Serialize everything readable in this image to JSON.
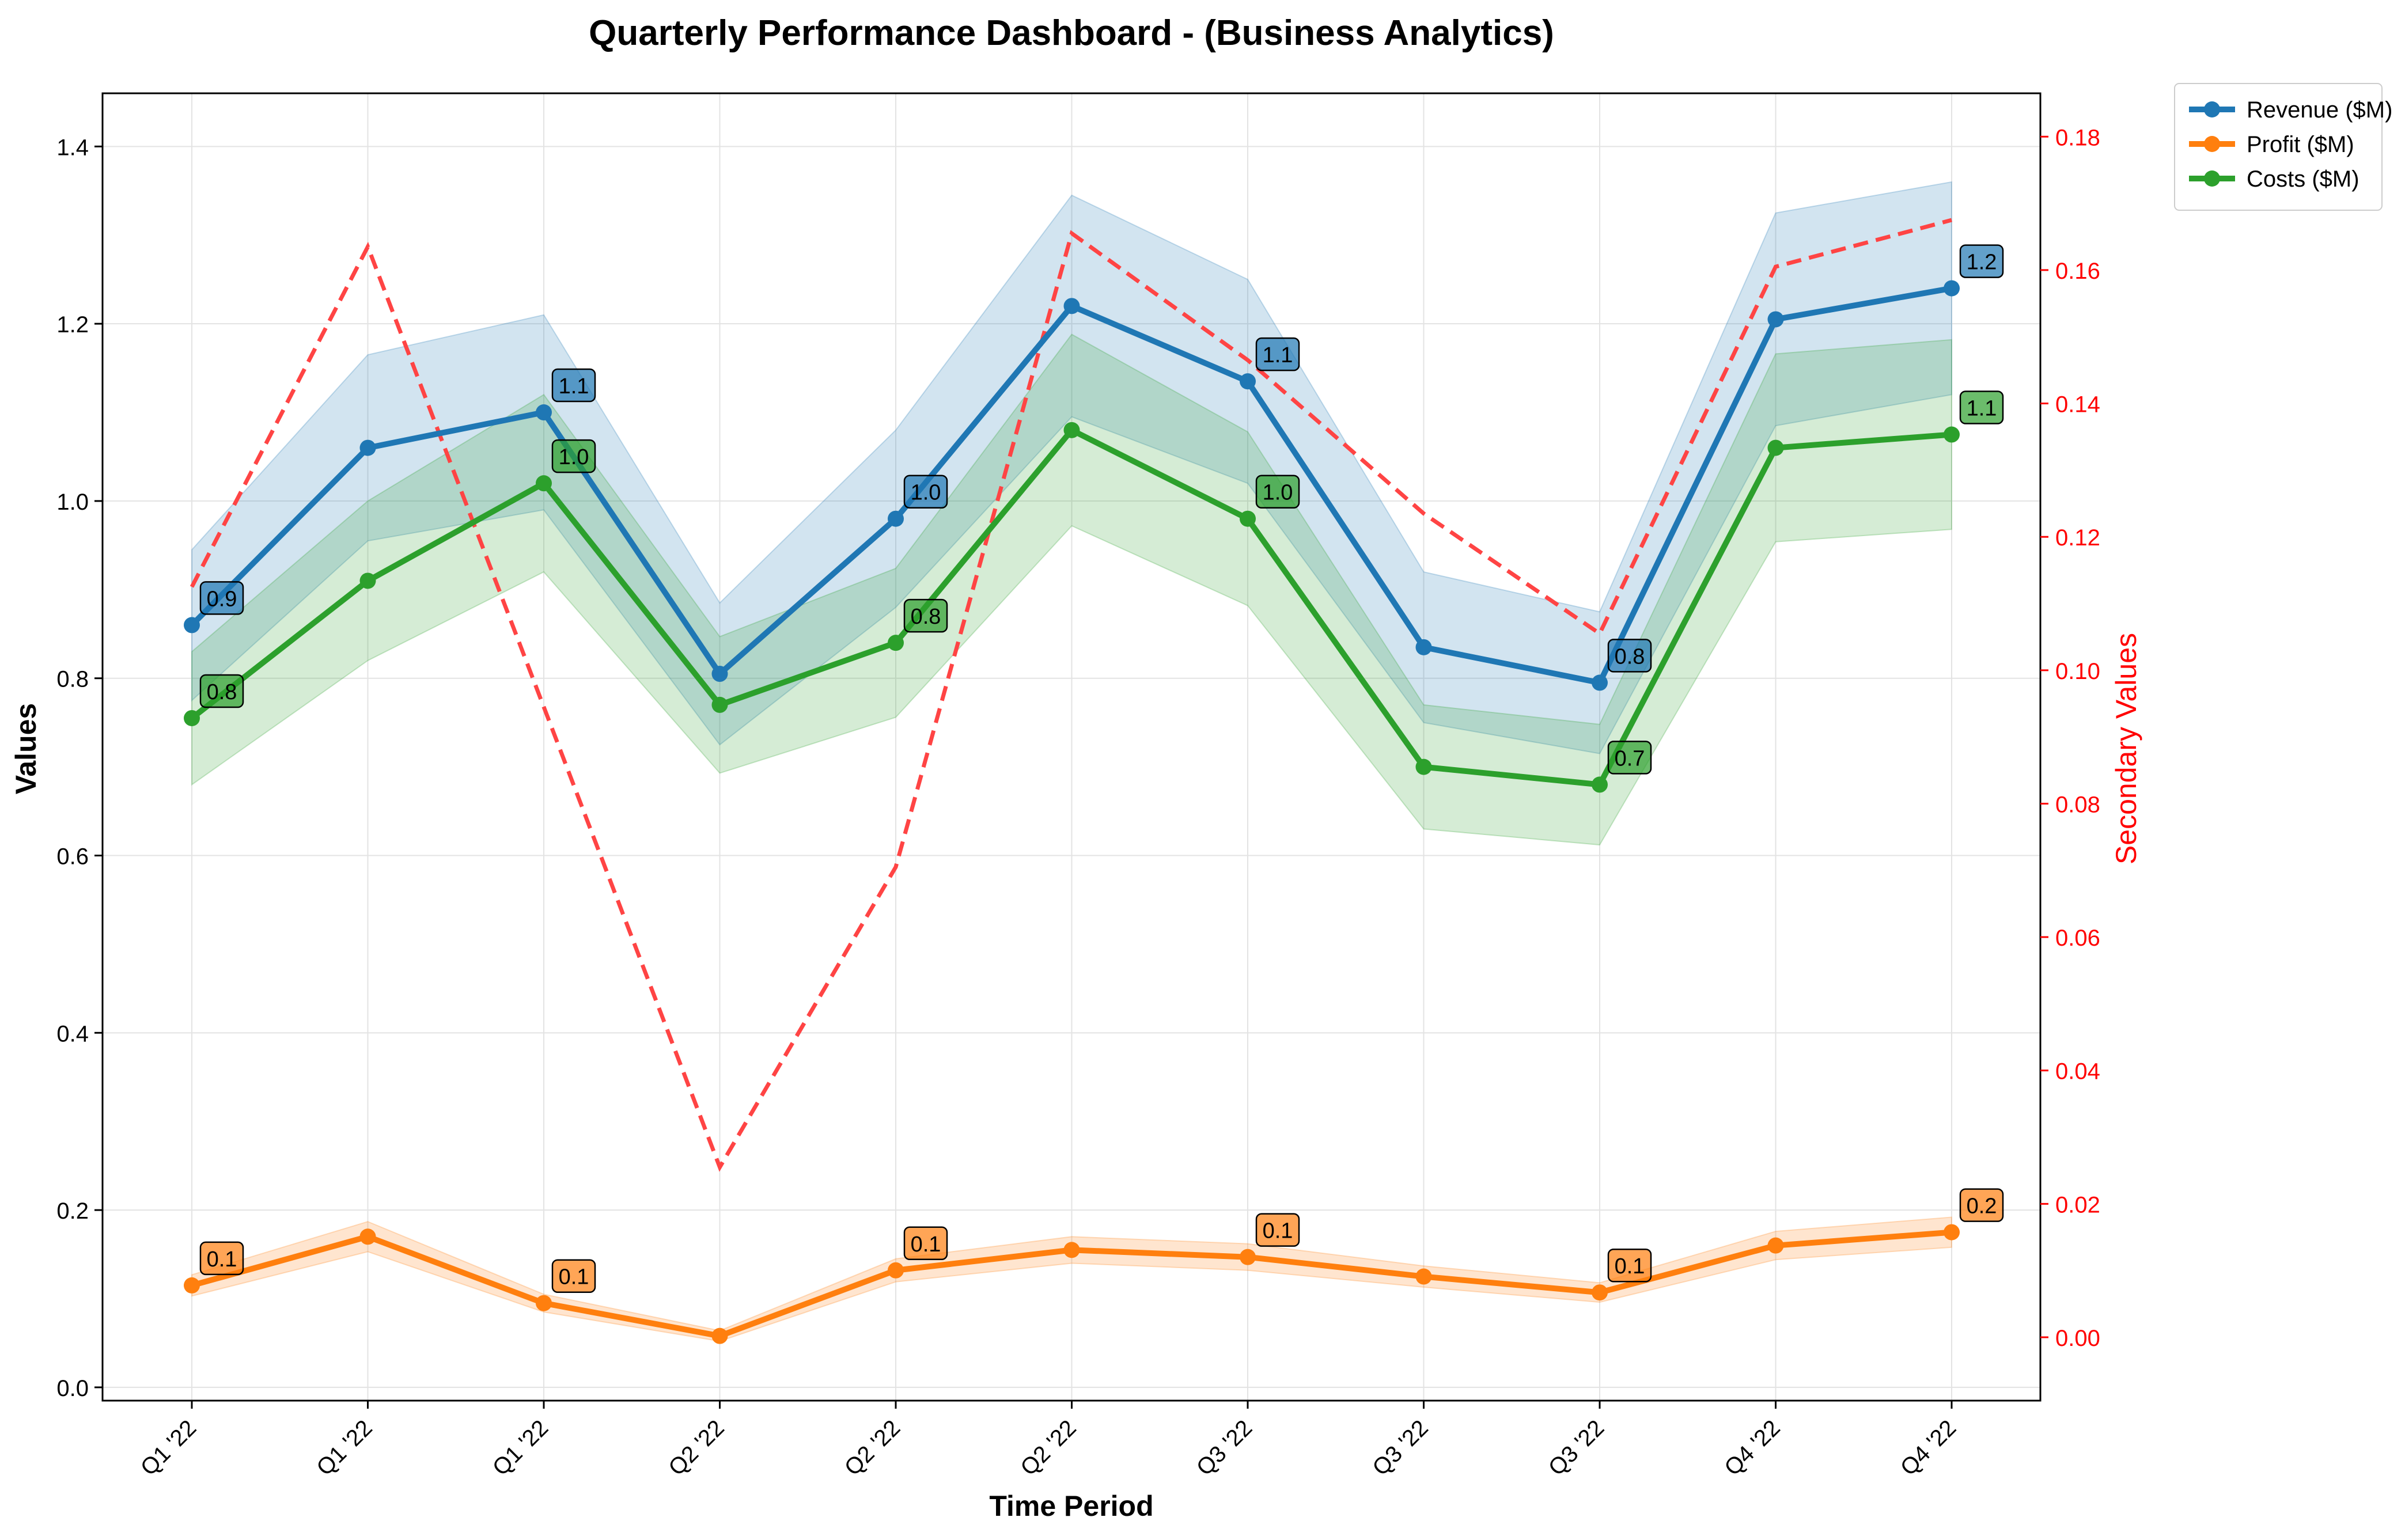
{
  "chart_data": {
    "type": "line",
    "title": "Quarterly Performance Dashboard - (Business Analytics)",
    "xlabel": "Time Period",
    "ylabel": "Values",
    "y2label": "Secondary Values",
    "categories": [
      "Q1 '22",
      "Q1 '22",
      "Q1 '22",
      "Q2 '22",
      "Q2 '22",
      "Q2 '22",
      "Q3 '22",
      "Q3 '22",
      "Q3 '22",
      "Q4 '22",
      "Q4 '22"
    ],
    "ylim": [
      -0.015,
      1.46
    ],
    "y2lim": [
      -0.0095,
      0.1865
    ],
    "yticks": [
      0.0,
      0.2,
      0.4,
      0.6,
      0.8,
      1.0,
      1.2,
      1.4
    ],
    "ytick_labels": [
      "0.0",
      "0.2",
      "0.4",
      "0.6",
      "0.8",
      "1.0",
      "1.2",
      "1.4"
    ],
    "y2ticks": [
      0.0,
      0.02,
      0.04,
      0.06,
      0.08,
      0.1,
      0.12,
      0.14,
      0.16,
      0.18
    ],
    "y2tick_labels": [
      "0.00",
      "0.02",
      "0.04",
      "0.06",
      "0.08",
      "0.10",
      "0.12",
      "0.14",
      "0.16",
      "0.18"
    ],
    "grid": true,
    "legend_position": "top-right",
    "series": [
      {
        "name": "Revenue ($M)",
        "color": "#1f77b4",
        "values": [
          0.86,
          1.06,
          1.1,
          0.805,
          0.98,
          1.22,
          1.135,
          0.835,
          0.795,
          1.205,
          1.24
        ],
        "band": [
          0.085,
          0.105,
          0.11,
          0.08,
          0.1,
          0.125,
          0.115,
          0.085,
          0.08,
          0.12,
          0.12
        ],
        "annotations": [
          {
            "index": 0,
            "text": "0.9"
          },
          {
            "index": 2,
            "text": "1.1"
          },
          {
            "index": 4,
            "text": "1.0"
          },
          {
            "index": 6,
            "text": "1.1"
          },
          {
            "index": 8,
            "text": "0.8"
          },
          {
            "index": 10,
            "text": "1.2"
          }
        ]
      },
      {
        "name": "Profit ($M)",
        "color": "#ff7f0e",
        "values": [
          0.115,
          0.17,
          0.095,
          0.058,
          0.132,
          0.155,
          0.147,
          0.125,
          0.107,
          0.16,
          0.175
        ],
        "band": [
          0.012,
          0.017,
          0.01,
          0.006,
          0.013,
          0.015,
          0.015,
          0.012,
          0.011,
          0.016,
          0.017
        ],
        "annotations": [
          {
            "index": 0,
            "text": "0.1"
          },
          {
            "index": 2,
            "text": "0.1"
          },
          {
            "index": 4,
            "text": "0.1"
          },
          {
            "index": 6,
            "text": "0.1"
          },
          {
            "index": 8,
            "text": "0.1"
          },
          {
            "index": 10,
            "text": "0.2"
          }
        ]
      },
      {
        "name": "Costs ($M)",
        "color": "#2ca02c",
        "values": [
          0.755,
          0.91,
          1.02,
          0.77,
          0.84,
          1.08,
          0.98,
          0.7,
          0.68,
          1.06,
          1.075
        ],
        "band": [
          0.075,
          0.09,
          0.1,
          0.077,
          0.084,
          0.108,
          0.098,
          0.07,
          0.068,
          0.106,
          0.107
        ],
        "annotations": [
          {
            "index": 0,
            "text": "0.8"
          },
          {
            "index": 2,
            "text": "1.0"
          },
          {
            "index": 4,
            "text": "0.8"
          },
          {
            "index": 6,
            "text": "1.0"
          },
          {
            "index": 8,
            "text": "0.7"
          },
          {
            "index": 10,
            "text": "1.1"
          }
        ]
      }
    ],
    "secondary_series": {
      "name": "",
      "color": "#ff4444",
      "style": "dashed",
      "axis": "right",
      "values": [
        0.1125,
        0.1635,
        0.0945,
        0.0255,
        0.0705,
        0.1655,
        0.1465,
        0.1235,
        0.1055,
        0.1605,
        0.1675
      ]
    }
  }
}
